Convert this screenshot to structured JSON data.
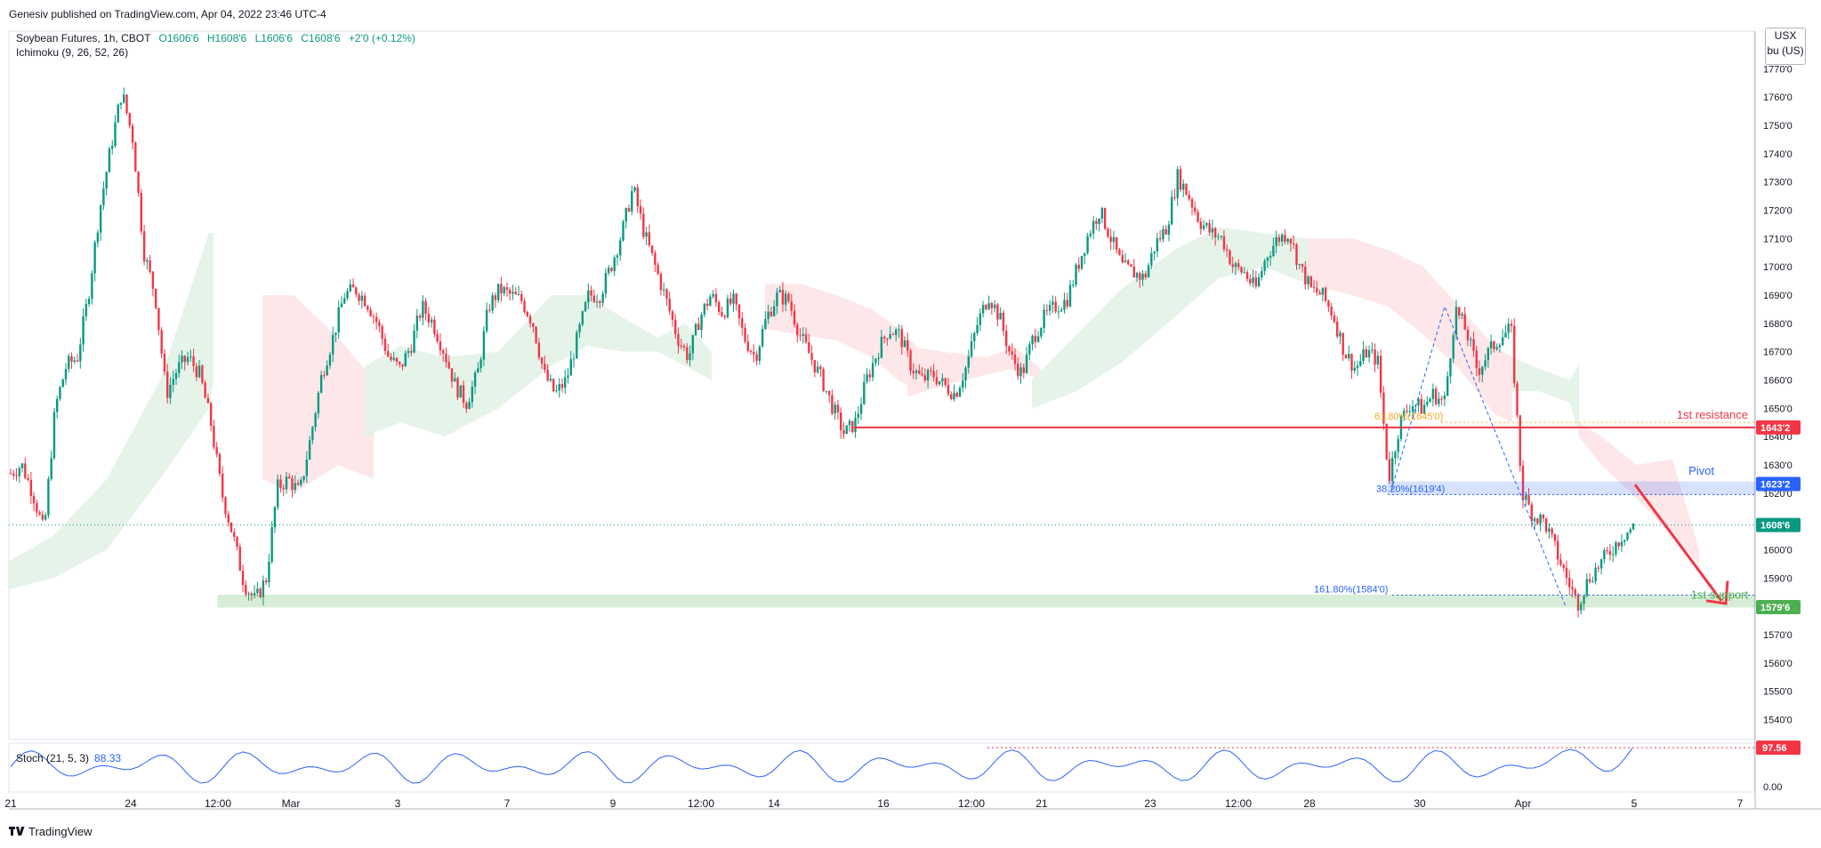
{
  "publisher": "Genesiv published on TradingView.com, Apr 04, 2022 23:46 UTC-4",
  "symbol": "Soybean Futures, 1h, CBOT",
  "ohlc": {
    "open": "O1606'6",
    "high": "H1608'6",
    "low": "L1606'6",
    "close": "C1608'6",
    "change": "+2'0 (+0.12%)"
  },
  "indicator": "Ichimoku (9, 26, 52, 26)",
  "unit_box": {
    "currency": "USX",
    "unit": "bu (US)"
  },
  "brand": "TradingView",
  "stoch": {
    "label": "Stoch (21, 5, 3)",
    "value": "88.33",
    "ref_label": "97.56",
    "zero_label": "0.00"
  },
  "colors": {
    "up": "#089981",
    "down": "#f23645",
    "resistance": "#f23645",
    "pivot": "#2962ff",
    "support": "#4caf50",
    "stoch": "#2962ff",
    "cloud_green": "#e3f2e7",
    "cloud_red": "#fde4e6"
  },
  "chart_data": {
    "type": "candlestick",
    "title": "Soybean Futures, 1h, CBOT",
    "y_ticks": [
      "1770'0",
      "1760'0",
      "1750'0",
      "1740'0",
      "1730'0",
      "1720'0",
      "1710'0",
      "1700'0",
      "1690'0",
      "1680'0",
      "1670'0",
      "1660'0",
      "1650'0",
      "1640'0",
      "1630'0",
      "1620'0",
      "1610'0",
      "1600'0",
      "1590'0",
      "1580'0",
      "1570'0",
      "1560'0",
      "1550'0",
      "1540'0"
    ],
    "ylim": [
      1532,
      1777
    ],
    "x_ticks": [
      "21",
      "24",
      "12:00",
      "Mar",
      "3",
      "7",
      "9",
      "12:00",
      "14",
      "16",
      "12:00",
      "21",
      "23",
      "12:00",
      "28",
      "30",
      "Apr",
      "5",
      "7"
    ],
    "price_path": [
      1627,
      1630,
      1620,
      1606,
      1650,
      1665,
      1668,
      1690,
      1720,
      1742,
      1762,
      1745,
      1705,
      1690,
      1655,
      1664,
      1668,
      1662,
      1645,
      1620,
      1605,
      1588,
      1582,
      1590,
      1622,
      1625,
      1620,
      1640,
      1662,
      1675,
      1690,
      1692,
      1688,
      1680,
      1668,
      1664,
      1672,
      1686,
      1680,
      1670,
      1658,
      1652,
      1662,
      1686,
      1692,
      1690,
      1688,
      1680,
      1662,
      1655,
      1660,
      1675,
      1690,
      1690,
      1700,
      1712,
      1728,
      1712,
      1700,
      1688,
      1675,
      1668,
      1682,
      1690,
      1684,
      1688,
      1675,
      1668,
      1682,
      1690,
      1688,
      1676,
      1668,
      1660,
      1650,
      1641,
      1645,
      1660,
      1670,
      1678,
      1676,
      1665,
      1660,
      1662,
      1658,
      1655,
      1665,
      1680,
      1690,
      1682,
      1668,
      1662,
      1675,
      1682,
      1686,
      1688,
      1700,
      1712,
      1720,
      1710,
      1700,
      1698,
      1696,
      1708,
      1714,
      1732,
      1725,
      1716,
      1712,
      1710,
      1700,
      1698,
      1692,
      1704,
      1710,
      1712,
      1700,
      1692,
      1690,
      1683,
      1670,
      1664,
      1670,
      1667,
      1625,
      1645,
      1652,
      1650,
      1655,
      1652,
      1685,
      1677,
      1663,
      1670,
      1675,
      1678,
      1620,
      1612,
      1610,
      1600,
      1590,
      1581,
      1590,
      1595,
      1600,
      1605,
      1608
    ],
    "ichimoku_cloud": [
      {
        "from": 0,
        "to": 10,
        "top": [
          1607,
          1610,
          1615,
          1622,
          1632,
          1640,
          1650,
          1662,
          1675,
          1690
        ],
        "bottom": [
          1596,
          1598,
          1600,
          1604,
          1610,
          1620,
          1630,
          1640,
          1652,
          1664
        ],
        "bias": "green"
      },
      {
        "from": 10,
        "to": 40,
        "top": [
          1690,
          1712,
          1716,
          1710,
          1700,
          1695,
          1682,
          1678,
          1675,
          1670,
          1667
        ],
        "bottom": [
          1664,
          1670,
          1672,
          1670,
          1660,
          1650,
          1645,
          1640,
          1636,
          1640,
          1650
        ],
        "bias": "green"
      }
    ],
    "levels": [
      {
        "name": "1st resistance",
        "price": 1643.25,
        "label": "1643'2",
        "color": "#f23645"
      },
      {
        "name": "Pivot",
        "price": 1623.25,
        "zone": [
          1619.5,
          1624
        ],
        "label": "1623'2",
        "color": "#2962ff"
      },
      {
        "name": "1st support",
        "price": 1579.75,
        "zone": [
          1579.75,
          1584
        ],
        "label": "1579'6",
        "color": "#4caf50"
      }
    ],
    "last_price": {
      "price": 1608.75,
      "label": "1608'6"
    },
    "fib_labels": [
      {
        "text": "61.80%(1645'0)",
        "price": 1645.0
      },
      {
        "text": "38.20%(1619'4)",
        "price": 1619.5
      },
      {
        "text": "161.80%(1584'0)",
        "price": 1584.0
      }
    ],
    "annotations": [
      "1st resistance",
      "Pivot",
      "1st support"
    ]
  }
}
